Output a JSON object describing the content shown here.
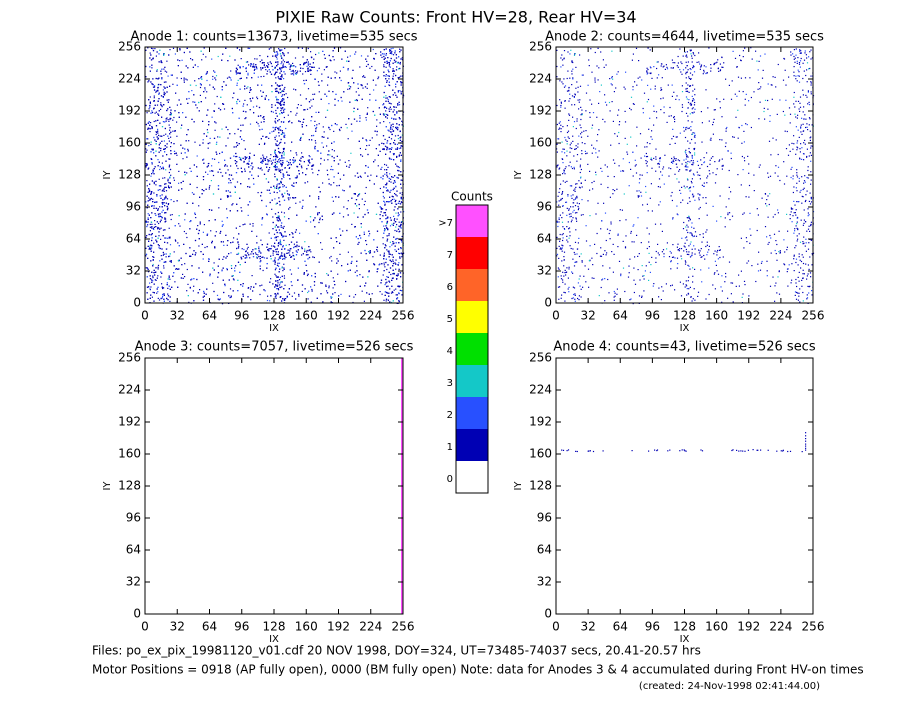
{
  "title": "PIXIE Raw Counts:  Front HV=28, Rear HV=34",
  "chart_data": [
    {
      "type": "heatmap",
      "title": "Anode 1: counts=13673, livetime=535 secs",
      "xlabel": "IX",
      "ylabel": "IY",
      "xlim": [
        0,
        256
      ],
      "ylim": [
        0,
        256
      ],
      "xticks": [
        0,
        32,
        64,
        96,
        128,
        160,
        192,
        224,
        256
      ],
      "yticks": [
        0,
        32,
        64,
        96,
        128,
        160,
        192,
        224,
        256
      ]
    },
    {
      "type": "heatmap",
      "title": "Anode 2: counts=4644, livetime=535 secs",
      "xlabel": "IX",
      "ylabel": "IY",
      "xlim": [
        0,
        256
      ],
      "ylim": [
        0,
        256
      ],
      "xticks": [
        0,
        32,
        64,
        96,
        128,
        160,
        192,
        224,
        256
      ],
      "yticks": [
        0,
        32,
        64,
        96,
        128,
        160,
        192,
        224,
        256
      ]
    },
    {
      "type": "heatmap",
      "title": "Anode 3: counts=7057, livetime=526 secs",
      "xlabel": "IX",
      "ylabel": "IY",
      "xlim": [
        0,
        256
      ],
      "ylim": [
        0,
        256
      ],
      "xticks": [
        0,
        32,
        64,
        96,
        128,
        160,
        192,
        224,
        256
      ],
      "yticks": [
        0,
        32,
        64,
        96,
        128,
        160,
        192,
        224,
        256
      ]
    },
    {
      "type": "heatmap",
      "title": "Anode 4: counts=43, livetime=526 secs",
      "xlabel": "IX",
      "ylabel": "IY",
      "xlim": [
        0,
        256
      ],
      "ylim": [
        0,
        256
      ],
      "xticks": [
        0,
        32,
        64,
        96,
        128,
        160,
        192,
        224,
        256
      ],
      "yticks": [
        0,
        32,
        64,
        96,
        128,
        160,
        192,
        224,
        256
      ]
    }
  ],
  "color_scale": {
    "title": "Counts",
    "labels": [
      "0",
      "1",
      "2",
      "3",
      "4",
      "5",
      "6",
      "7",
      ">7"
    ],
    "colors": [
      "#ffffff",
      "#0000b4",
      "#2850ff",
      "#14c8c8",
      "#00e000",
      "#ffff00",
      "#ff6428",
      "#ff0000",
      "#ff50ff"
    ]
  },
  "footer": {
    "files": "Files: po_ex_pix_19981120_v01.cdf    20 NOV 1998, DOY=324, UT=73485-74037 secs, 20.41-20.57 hrs",
    "motor": "Motor Positions = 0918 (AP fully open), 0000 (BM fully open)    Note: data for Anodes 3 & 4 accumulated during Front HV-on times",
    "created": "(created: 24-Nov-1998 02:41:44.00)"
  }
}
